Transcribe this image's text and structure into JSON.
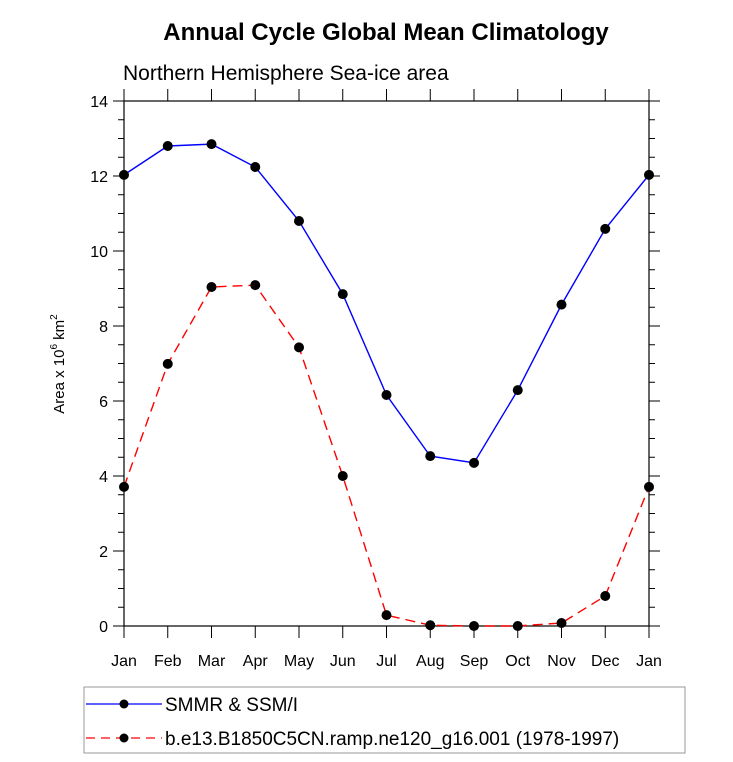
{
  "chart_data": {
    "type": "line",
    "title": "Annual Cycle Global Mean Climatology",
    "subtitle": "Northern Hemisphere Sea-ice area",
    "xlabel": "",
    "ylabel": "Area x 10^6 km^2",
    "ylabel_parts": {
      "base": "Area x 10",
      "exp1": "6",
      "unit": " km",
      "exp2": "2"
    },
    "categories": [
      "Jan",
      "Feb",
      "Mar",
      "Apr",
      "May",
      "Jun",
      "Jul",
      "Aug",
      "Sep",
      "Oct",
      "Nov",
      "Dec",
      "Jan"
    ],
    "ylim": [
      0,
      14
    ],
    "yticks": [
      0,
      2,
      4,
      6,
      8,
      10,
      12,
      14
    ],
    "yminor_step": 0.5,
    "grid": false,
    "legend_position": "bottom",
    "series": [
      {
        "name": "SMMR & SSM/I",
        "color": "#0000ff",
        "dash": "solid",
        "values": [
          12.03,
          12.8,
          12.85,
          12.24,
          10.8,
          8.85,
          6.16,
          4.53,
          4.35,
          6.29,
          8.57,
          10.59,
          12.03
        ]
      },
      {
        "name": "b.e13.B1850C5CN.ramp.ne120_g16.001 (1978-1997)",
        "color": "#ff0000",
        "dash": "dashed",
        "values": [
          3.71,
          6.99,
          9.04,
          9.09,
          7.43,
          4.0,
          0.29,
          0.02,
          0.0,
          0.0,
          0.08,
          0.8,
          3.71
        ]
      }
    ],
    "marker_color": "#000000"
  }
}
